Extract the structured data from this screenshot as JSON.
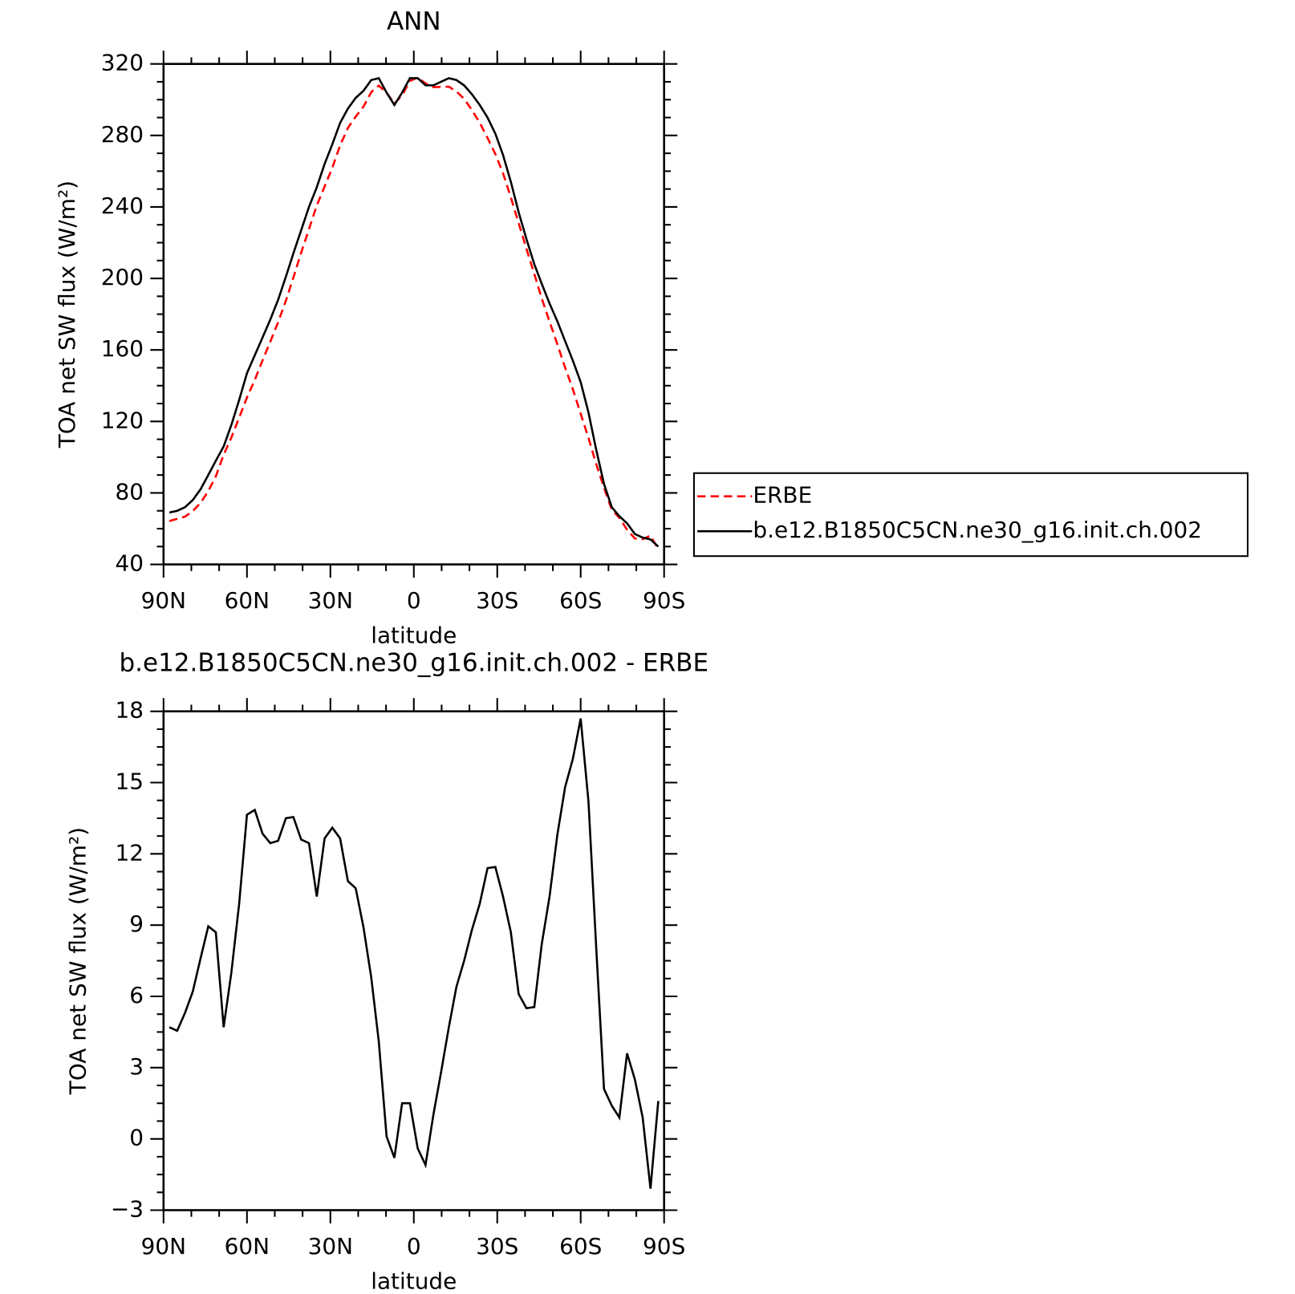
{
  "chart_data": [
    {
      "type": "line",
      "title": "ANN",
      "xlabel": "latitude",
      "ylabel": "TOA net SW flux (W/m²)",
      "x": [
        87.9,
        85.1,
        82.3,
        79.5,
        76.7,
        73.9,
        71.2,
        68.4,
        65.6,
        62.8,
        60.0,
        57.2,
        54.4,
        51.6,
        48.8,
        46.0,
        43.3,
        40.5,
        37.7,
        34.9,
        32.1,
        29.3,
        26.5,
        23.7,
        20.9,
        18.1,
        15.3,
        12.6,
        9.8,
        7.0,
        4.2,
        1.4,
        -1.4,
        -4.2,
        -7.0,
        -9.8,
        -12.6,
        -15.3,
        -18.1,
        -20.9,
        -23.7,
        -26.5,
        -29.3,
        -32.1,
        -34.9,
        -37.7,
        -40.5,
        -43.3,
        -46.0,
        -48.8,
        -51.6,
        -54.4,
        -57.2,
        -60.0,
        -62.8,
        -65.6,
        -68.4,
        -71.2,
        -73.9,
        -76.7,
        -79.5,
        -82.3,
        -85.1,
        -87.9
      ],
      "series": [
        {
          "name": "ERBE",
          "color": "#ff0000",
          "dash": true,
          "values": [
            64.3,
            65.5,
            66.7,
            69.8,
            74.4,
            81.0,
            89.3,
            101.3,
            111,
            122.1,
            133.4,
            143.2,
            154.2,
            164.6,
            175.5,
            187.5,
            200.5,
            214.4,
            227.6,
            240.8,
            251.4,
            261.9,
            274.4,
            284.2,
            290.5,
            296.1,
            304.2,
            307.9,
            303.9,
            297.8,
            302.5,
            310.5,
            312.4,
            309.1,
            307,
            307.2,
            307.3,
            304.6,
            300.5,
            294.2,
            287.1,
            278.6,
            269.6,
            258.8,
            245.3,
            230.9,
            216.5,
            202.5,
            188.8,
            175.8,
            163.2,
            150.2,
            138,
            124.3,
            110.8,
            96,
            82.9,
            70.6,
            66.1,
            59.4,
            54.5,
            54.1,
            56.1,
            48.4
          ]
        },
        {
          "name": "b.e12.B1850C5CN.ne30_g16.init.ch.002",
          "color": "#000000",
          "dash": false,
          "values": [
            69,
            70,
            72,
            76,
            82,
            90,
            98,
            106,
            118,
            132,
            147,
            157,
            167,
            177,
            188,
            201,
            214,
            227,
            240,
            251,
            264,
            275,
            287,
            295,
            301,
            305,
            311,
            312,
            304,
            297,
            304,
            312,
            312,
            308,
            308,
            310,
            312,
            311,
            308,
            303,
            297,
            290,
            281,
            269,
            254,
            237,
            222,
            208,
            197,
            186,
            176,
            165,
            154,
            142,
            125,
            104,
            85,
            72,
            67,
            63,
            57,
            55,
            54,
            50
          ]
        }
      ],
      "xlim": [
        90,
        -90
      ],
      "xticks": [
        {
          "value": 90,
          "label": "90N"
        },
        {
          "value": 60,
          "label": "60N"
        },
        {
          "value": 30,
          "label": "30N"
        },
        0,
        {
          "value": -30,
          "label": "30S"
        },
        {
          "value": -60,
          "label": "60S"
        },
        {
          "value": -90,
          "label": "90S"
        }
      ],
      "ylim": [
        40,
        320
      ],
      "yticks": [
        40,
        80,
        120,
        160,
        200,
        240,
        280,
        320
      ],
      "legend": "right"
    },
    {
      "type": "line",
      "title": "b.e12.B1850C5CN.ne30_g16.init.ch.002 - ERBE",
      "xlabel": "latitude",
      "ylabel": "TOA net SW flux (W/m²)",
      "x": [
        87.9,
        85.1,
        82.3,
        79.5,
        76.7,
        73.9,
        71.2,
        68.4,
        65.6,
        62.8,
        60.0,
        57.2,
        54.4,
        51.6,
        48.8,
        46.0,
        43.3,
        40.5,
        37.7,
        34.9,
        32.1,
        29.3,
        26.5,
        23.7,
        20.9,
        18.1,
        15.3,
        12.6,
        9.8,
        7.0,
        4.2,
        1.4,
        -1.4,
        -4.2,
        -7.0,
        -9.8,
        -12.6,
        -15.3,
        -18.1,
        -20.9,
        -23.7,
        -26.5,
        -29.3,
        -32.1,
        -34.9,
        -37.7,
        -40.5,
        -43.3,
        -46.0,
        -48.8,
        -51.6,
        -54.4,
        -57.2,
        -60.0,
        -62.8,
        -65.6,
        -68.4,
        -71.2,
        -73.9,
        -76.7,
        -79.5,
        -82.3,
        -85.1,
        -87.9
      ],
      "series": [
        {
          "color": "#000000",
          "dash": false,
          "values": [
            4.7,
            4.55,
            5.3,
            6.2,
            7.6,
            8.95,
            8.7,
            4.7,
            7.0,
            9.9,
            13.65,
            13.85,
            12.85,
            12.45,
            12.55,
            13.5,
            13.55,
            12.6,
            12.45,
            10.2,
            12.65,
            13.1,
            12.65,
            10.85,
            10.55,
            8.9,
            6.8,
            4.1,
            0.1,
            -0.8,
            1.5,
            1.5,
            -0.4,
            -1.1,
            1.0,
            2.8,
            4.7,
            6.4,
            7.5,
            8.8,
            9.9,
            11.4,
            11.45,
            10.2,
            8.7,
            6.1,
            5.5,
            5.55,
            8.2,
            10.2,
            12.8,
            14.8,
            16.0,
            17.7,
            14.2,
            8.0,
            2.1,
            1.4,
            0.9,
            3.6,
            2.5,
            0.9,
            -2.1,
            1.6
          ]
        }
      ],
      "xlim": [
        90,
        -90
      ],
      "xticks": [
        {
          "value": 90,
          "label": "90N"
        },
        {
          "value": 60,
          "label": "60N"
        },
        {
          "value": 30,
          "label": "30N"
        },
        0,
        {
          "value": -30,
          "label": "30S"
        },
        {
          "value": -60,
          "label": "60S"
        },
        {
          "value": -90,
          "label": "90S"
        }
      ],
      "ylim": [
        -3,
        18
      ],
      "yticks": [
        {
          "value": -3,
          "label": "−3"
        },
        0,
        3,
        6,
        9,
        12,
        15,
        18
      ]
    }
  ]
}
